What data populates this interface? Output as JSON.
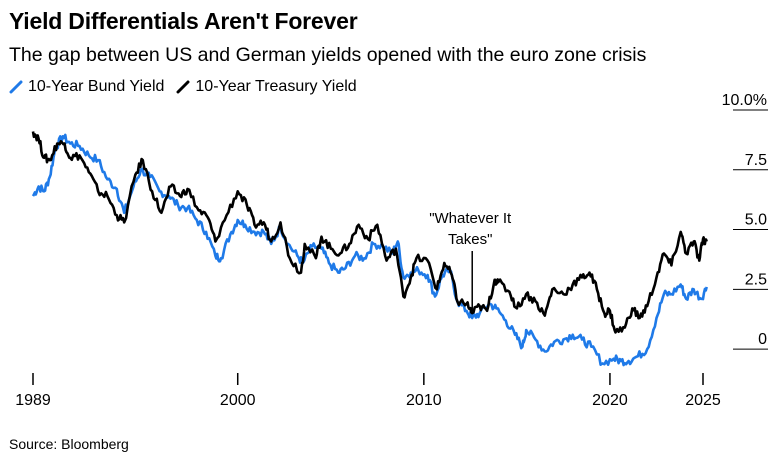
{
  "title": "Yield Differentials Aren't Forever",
  "subtitle": "The gap between US and German yields opened with the euro zone crisis",
  "source": "Source: Bloomberg",
  "legend": [
    {
      "label": "10-Year Bund Yield",
      "color": "#1f7ae8"
    },
    {
      "label": "10-Year Treasury Yield",
      "color": "#000000"
    }
  ],
  "chart_data": {
    "type": "line",
    "title": "Yield Differentials Aren't Forever",
    "subtitle": "The gap between US and German yields opened with the euro zone crisis",
    "xlabel": "",
    "ylabel": "",
    "xlim": [
      1989,
      2025.8
    ],
    "ylim": [
      -1.0,
      10.0
    ],
    "x_ticks": [
      1989,
      2000,
      2010,
      2020,
      2025
    ],
    "y_ticks": [
      {
        "value": 10,
        "label": "10.0%"
      },
      {
        "value": 7.5,
        "label": "7.5"
      },
      {
        "value": 5,
        "label": "5.0"
      },
      {
        "value": 2.5,
        "label": "2.5"
      },
      {
        "value": 0,
        "label": "0"
      }
    ],
    "legend_position": "top-left",
    "annotation": {
      "text": [
        "\"Whatever It",
        "Takes\""
      ],
      "x": 2012.6,
      "y": 1.5
    },
    "series": [
      {
        "name": "10-Year Bund Yield",
        "color": "#1f7ae8",
        "points": [
          [
            1989.0,
            6.4
          ],
          [
            1989.3,
            6.8
          ],
          [
            1989.6,
            6.6
          ],
          [
            1989.9,
            7.2
          ],
          [
            1990.2,
            8.4
          ],
          [
            1990.6,
            8.9
          ],
          [
            1991.0,
            8.6
          ],
          [
            1991.5,
            8.5
          ],
          [
            1992.0,
            8.1
          ],
          [
            1992.5,
            7.9
          ],
          [
            1993.0,
            7.1
          ],
          [
            1993.5,
            6.7
          ],
          [
            1993.9,
            5.7
          ],
          [
            1994.4,
            6.8
          ],
          [
            1994.8,
            7.5
          ],
          [
            1995.3,
            7.2
          ],
          [
            1995.8,
            6.6
          ],
          [
            1996.3,
            6.4
          ],
          [
            1996.8,
            6.0
          ],
          [
            1997.3,
            5.9
          ],
          [
            1997.8,
            5.4
          ],
          [
            1998.3,
            4.9
          ],
          [
            1998.8,
            3.9
          ],
          [
            1999.1,
            3.8
          ],
          [
            1999.6,
            4.8
          ],
          [
            2000.0,
            5.4
          ],
          [
            2000.4,
            5.2
          ],
          [
            2000.9,
            4.9
          ],
          [
            2001.4,
            4.9
          ],
          [
            2001.8,
            4.4
          ],
          [
            2002.3,
            5.1
          ],
          [
            2002.7,
            4.4
          ],
          [
            2003.2,
            3.9
          ],
          [
            2003.5,
            3.6
          ],
          [
            2004.0,
            4.3
          ],
          [
            2004.5,
            4.2
          ],
          [
            2004.9,
            3.6
          ],
          [
            2005.4,
            3.2
          ],
          [
            2005.8,
            3.4
          ],
          [
            2006.3,
            3.9
          ],
          [
            2006.8,
            3.8
          ],
          [
            2007.3,
            4.4
          ],
          [
            2007.8,
            4.3
          ],
          [
            2008.3,
            4.0
          ],
          [
            2008.6,
            4.5
          ],
          [
            2008.9,
            3.0
          ],
          [
            2009.3,
            3.2
          ],
          [
            2009.7,
            3.3
          ],
          [
            2010.2,
            3.1
          ],
          [
            2010.6,
            2.2
          ],
          [
            2011.0,
            3.1
          ],
          [
            2011.4,
            3.3
          ],
          [
            2011.8,
            2.0
          ],
          [
            2012.3,
            1.6
          ],
          [
            2012.6,
            1.3
          ],
          [
            2013.0,
            1.5
          ],
          [
            2013.5,
            1.9
          ],
          [
            2013.9,
            1.7
          ],
          [
            2014.4,
            1.2
          ],
          [
            2014.9,
            0.6
          ],
          [
            2015.3,
            0.1
          ],
          [
            2015.5,
            0.8
          ],
          [
            2016.0,
            0.4
          ],
          [
            2016.5,
            -0.1
          ],
          [
            2017.0,
            0.3
          ],
          [
            2017.5,
            0.4
          ],
          [
            2018.0,
            0.6
          ],
          [
            2018.5,
            0.4
          ],
          [
            2019.0,
            0.1
          ],
          [
            2019.6,
            -0.6
          ],
          [
            2020.2,
            -0.4
          ],
          [
            2020.6,
            -0.5
          ],
          [
            2021.0,
            -0.5
          ],
          [
            2021.5,
            -0.3
          ],
          [
            2022.0,
            0.0
          ],
          [
            2022.5,
            1.3
          ],
          [
            2022.9,
            2.3
          ],
          [
            2023.3,
            2.3
          ],
          [
            2023.8,
            2.7
          ],
          [
            2024.1,
            2.1
          ],
          [
            2024.5,
            2.5
          ],
          [
            2024.9,
            2.1
          ],
          [
            2025.2,
            2.6
          ]
        ]
      },
      {
        "name": "10-Year Treasury Yield",
        "color": "#000000",
        "points": [
          [
            1989.0,
            9.1
          ],
          [
            1989.3,
            8.8
          ],
          [
            1989.6,
            8.0
          ],
          [
            1989.9,
            7.9
          ],
          [
            1990.3,
            8.6
          ],
          [
            1990.7,
            8.6
          ],
          [
            1991.0,
            8.0
          ],
          [
            1991.5,
            8.1
          ],
          [
            1992.0,
            7.4
          ],
          [
            1992.5,
            6.6
          ],
          [
            1993.0,
            6.4
          ],
          [
            1993.5,
            5.6
          ],
          [
            1993.9,
            5.3
          ],
          [
            1994.5,
            7.3
          ],
          [
            1994.9,
            7.9
          ],
          [
            1995.4,
            6.6
          ],
          [
            1995.9,
            5.7
          ],
          [
            1996.4,
            6.8
          ],
          [
            1996.9,
            6.4
          ],
          [
            1997.3,
            6.7
          ],
          [
            1997.9,
            5.8
          ],
          [
            1998.4,
            5.5
          ],
          [
            1998.8,
            4.5
          ],
          [
            1999.4,
            5.6
          ],
          [
            2000.0,
            6.6
          ],
          [
            2000.5,
            6.0
          ],
          [
            2000.9,
            5.2
          ],
          [
            2001.4,
            5.3
          ],
          [
            2001.8,
            4.5
          ],
          [
            2002.3,
            5.3
          ],
          [
            2002.8,
            3.8
          ],
          [
            2003.4,
            3.2
          ],
          [
            2003.6,
            4.4
          ],
          [
            2004.2,
            3.8
          ],
          [
            2004.5,
            4.7
          ],
          [
            2005.0,
            4.2
          ],
          [
            2005.5,
            4.0
          ],
          [
            2006.0,
            4.4
          ],
          [
            2006.5,
            5.2
          ],
          [
            2007.0,
            4.6
          ],
          [
            2007.5,
            5.2
          ],
          [
            2008.0,
            3.7
          ],
          [
            2008.5,
            4.2
          ],
          [
            2008.9,
            2.2
          ],
          [
            2009.3,
            3.0
          ],
          [
            2009.6,
            3.8
          ],
          [
            2010.2,
            3.7
          ],
          [
            2010.7,
            2.5
          ],
          [
            2011.1,
            3.6
          ],
          [
            2011.5,
            3.1
          ],
          [
            2011.8,
            2.0
          ],
          [
            2012.3,
            1.9
          ],
          [
            2012.6,
            1.5
          ],
          [
            2013.0,
            1.8
          ],
          [
            2013.4,
            1.6
          ],
          [
            2013.8,
            2.9
          ],
          [
            2014.0,
            2.8
          ],
          [
            2014.6,
            2.4
          ],
          [
            2015.0,
            1.7
          ],
          [
            2015.5,
            2.3
          ],
          [
            2016.0,
            2.0
          ],
          [
            2016.5,
            1.4
          ],
          [
            2016.9,
            2.5
          ],
          [
            2017.5,
            2.3
          ],
          [
            2018.0,
            2.7
          ],
          [
            2018.5,
            3.0
          ],
          [
            2018.9,
            3.2
          ],
          [
            2019.3,
            2.5
          ],
          [
            2019.7,
            1.5
          ],
          [
            2020.0,
            1.6
          ],
          [
            2020.3,
            0.7
          ],
          [
            2020.8,
            0.9
          ],
          [
            2021.2,
            1.7
          ],
          [
            2021.6,
            1.3
          ],
          [
            2022.0,
            1.8
          ],
          [
            2022.5,
            3.0
          ],
          [
            2022.9,
            4.0
          ],
          [
            2023.3,
            3.5
          ],
          [
            2023.8,
            4.9
          ],
          [
            2024.1,
            4.0
          ],
          [
            2024.5,
            4.5
          ],
          [
            2024.8,
            3.7
          ],
          [
            2025.0,
            4.6
          ],
          [
            2025.2,
            4.5
          ]
        ]
      }
    ]
  }
}
